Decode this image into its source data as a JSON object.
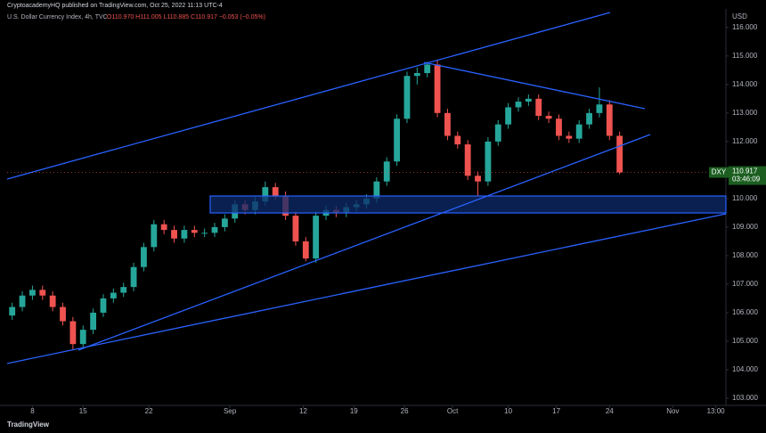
{
  "chart_data": {
    "type": "candlestick",
    "publisher": "CryptoacademyHQ published on TradingView.com, Oct 25, 2022 11:13 UTC-4",
    "title": "U.S. Dollar Currency Index, 4h, TVC",
    "legend_values": "O110.970 H111.005 L110.885 C110.917 −0.053 (−0.05%)",
    "currency": "USD",
    "symbol": "DXY",
    "last_price": {
      "value": 110.917,
      "label": "110.917"
    },
    "countdown": "03:46:09",
    "watermark": "TradingView",
    "up_color": "#26a69a",
    "down_color": "#ef5350",
    "x": [
      1,
      3,
      5,
      7,
      9,
      11,
      13,
      15,
      17,
      19,
      21,
      23,
      25,
      27,
      29,
      31,
      33,
      35,
      37,
      39,
      41,
      43,
      45,
      47,
      49,
      51,
      53,
      55,
      57,
      59,
      61,
      63,
      65,
      67,
      69,
      71,
      73,
      75,
      77,
      79,
      81,
      83,
      85,
      87,
      89,
      91,
      93,
      95,
      97,
      99,
      101,
      103,
      105,
      107,
      109,
      111,
      113,
      115,
      117,
      119,
      121
    ],
    "open": [
      105.9,
      106.2,
      106.6,
      106.8,
      106.6,
      106.2,
      105.7,
      104.9,
      105.4,
      106.0,
      106.5,
      106.7,
      106.9,
      107.6,
      108.3,
      109.1,
      108.9,
      108.6,
      108.9,
      108.8,
      108.8,
      109.0,
      109.3,
      109.8,
      109.6,
      109.9,
      110.4,
      110.1,
      109.4,
      108.5,
      107.9,
      109.4,
      109.6,
      109.5,
      109.7,
      109.8,
      110.0,
      110.6,
      111.3,
      112.8,
      114.3,
      114.4,
      114.7,
      113.0,
      112.2,
      111.9,
      110.8,
      110.6,
      112.0,
      112.6,
      113.2,
      113.4,
      113.5,
      112.9,
      112.8,
      112.2,
      112.1,
      112.6,
      113.0,
      113.3,
      112.2
    ],
    "high": [
      106.35,
      106.75,
      106.95,
      106.95,
      106.75,
      106.35,
      105.85,
      105.55,
      106.15,
      106.65,
      106.85,
      107.05,
      107.75,
      108.45,
      109.25,
      109.25,
      109.05,
      109.05,
      109.05,
      108.95,
      109.15,
      109.45,
      109.95,
      109.95,
      110.05,
      110.6,
      110.55,
      110.25,
      109.55,
      108.65,
      109.55,
      109.75,
      109.75,
      109.85,
      109.95,
      110.15,
      110.75,
      111.45,
      112.95,
      114.45,
      114.6,
      114.8,
      114.85,
      113.15,
      112.35,
      112.05,
      110.95,
      112.15,
      112.75,
      113.35,
      113.55,
      113.65,
      113.65,
      113.05,
      112.95,
      112.35,
      112.75,
      113.15,
      113.9,
      113.45,
      112.35
    ],
    "low": [
      105.75,
      106.05,
      106.45,
      106.45,
      106.05,
      105.55,
      104.7,
      104.75,
      105.25,
      105.85,
      106.35,
      106.55,
      106.75,
      107.45,
      108.15,
      108.75,
      108.45,
      108.45,
      108.65,
      108.65,
      108.65,
      108.85,
      109.15,
      109.45,
      109.45,
      109.75,
      109.95,
      109.25,
      108.35,
      107.8,
      107.75,
      109.25,
      109.35,
      109.35,
      109.55,
      109.65,
      109.85,
      110.45,
      111.15,
      112.65,
      114.0,
      114.25,
      112.85,
      112.05,
      111.75,
      110.65,
      110.1,
      110.45,
      111.85,
      112.45,
      113.05,
      113.25,
      112.75,
      112.65,
      112.05,
      111.95,
      111.95,
      112.45,
      112.85,
      112.05,
      110.85
    ],
    "close": [
      106.2,
      106.6,
      106.8,
      106.6,
      106.2,
      105.7,
      104.9,
      105.4,
      106.0,
      106.5,
      106.7,
      106.9,
      107.6,
      108.3,
      109.1,
      108.9,
      108.6,
      108.9,
      108.8,
      108.8,
      109.0,
      109.3,
      109.8,
      109.6,
      109.9,
      110.4,
      110.1,
      109.4,
      108.5,
      107.9,
      109.4,
      109.6,
      109.5,
      109.7,
      109.8,
      110.0,
      110.6,
      111.3,
      112.8,
      114.3,
      114.4,
      114.7,
      113.0,
      112.2,
      111.9,
      110.8,
      110.6,
      112.0,
      112.6,
      113.2,
      113.4,
      113.5,
      112.9,
      112.8,
      112.2,
      112.1,
      112.6,
      113.0,
      113.3,
      112.2,
      110.917
    ],
    "xlim": [
      0,
      142
    ],
    "ylim": [
      102.75,
      116.65
    ],
    "xticks": [
      {
        "value": 5,
        "label": "8"
      },
      {
        "value": 15,
        "label": "15"
      },
      {
        "value": 28,
        "label": "22"
      },
      {
        "value": 44,
        "label": "Sep"
      },
      {
        "value": 58.5,
        "label": "12"
      },
      {
        "value": 68.5,
        "label": "19"
      },
      {
        "value": 78.5,
        "label": "26"
      },
      {
        "value": 88,
        "label": "Oct"
      },
      {
        "value": 99,
        "label": "10"
      },
      {
        "value": 108.5,
        "label": "17"
      },
      {
        "value": 119,
        "label": "24"
      },
      {
        "value": 131.5,
        "label": "Nov"
      },
      {
        "value": 140,
        "label": "13:00"
      }
    ],
    "yticks": [
      {
        "value": 103,
        "label": "103.000"
      },
      {
        "value": 104,
        "label": "104.000"
      },
      {
        "value": 105,
        "label": "105.000"
      },
      {
        "value": 106,
        "label": "106.000"
      },
      {
        "value": 107,
        "label": "107.000"
      },
      {
        "value": 108,
        "label": "108.000"
      },
      {
        "value": 109,
        "label": "109.000"
      },
      {
        "value": 110,
        "label": "110.000"
      },
      {
        "value": 111,
        "label": "111.000"
      },
      {
        "value": 112,
        "label": "112.000"
      },
      {
        "value": 113,
        "label": "113.000"
      },
      {
        "value": 114,
        "label": "114.000"
      },
      {
        "value": 115,
        "label": "115.000"
      },
      {
        "value": 116,
        "label": "116.000"
      }
    ]
  }
}
